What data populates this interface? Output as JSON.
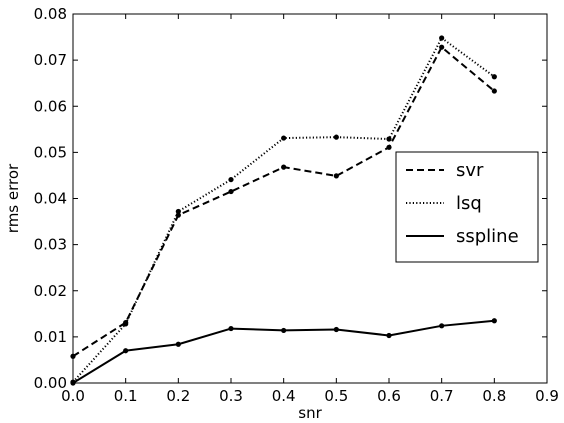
{
  "chart_data": {
    "type": "line",
    "title": "",
    "xlabel": "snr",
    "ylabel": "rms error",
    "xlim": [
      0.0,
      0.9
    ],
    "ylim": [
      0.0,
      0.08
    ],
    "xticks": [
      "0.0",
      "0.1",
      "0.2",
      "0.3",
      "0.4",
      "0.5",
      "0.6",
      "0.7",
      "0.8",
      "0.9"
    ],
    "yticks": [
      "0.00",
      "0.01",
      "0.02",
      "0.03",
      "0.04",
      "0.05",
      "0.06",
      "0.07",
      "0.08"
    ],
    "grid": false,
    "legend_position": "center-right",
    "x": [
      0.0,
      0.1,
      0.2,
      0.3,
      0.4,
      0.5,
      0.6,
      0.7,
      0.8
    ],
    "series": [
      {
        "name": "svr",
        "style": "dashed",
        "color": "#000000",
        "values": [
          0.0058,
          0.0131,
          0.0364,
          0.0415,
          0.0468,
          0.0449,
          0.0511,
          0.0728,
          0.0633
        ]
      },
      {
        "name": "lsq",
        "style": "dotted",
        "color": "#000000",
        "values": [
          0.0002,
          0.0128,
          0.0372,
          0.0441,
          0.0531,
          0.0533,
          0.0529,
          0.0748,
          0.0664
        ]
      },
      {
        "name": "sspline",
        "style": "solid",
        "color": "#000000",
        "values": [
          0.0,
          0.007,
          0.0084,
          0.0118,
          0.0114,
          0.0116,
          0.0103,
          0.0124,
          0.0135
        ]
      }
    ]
  }
}
